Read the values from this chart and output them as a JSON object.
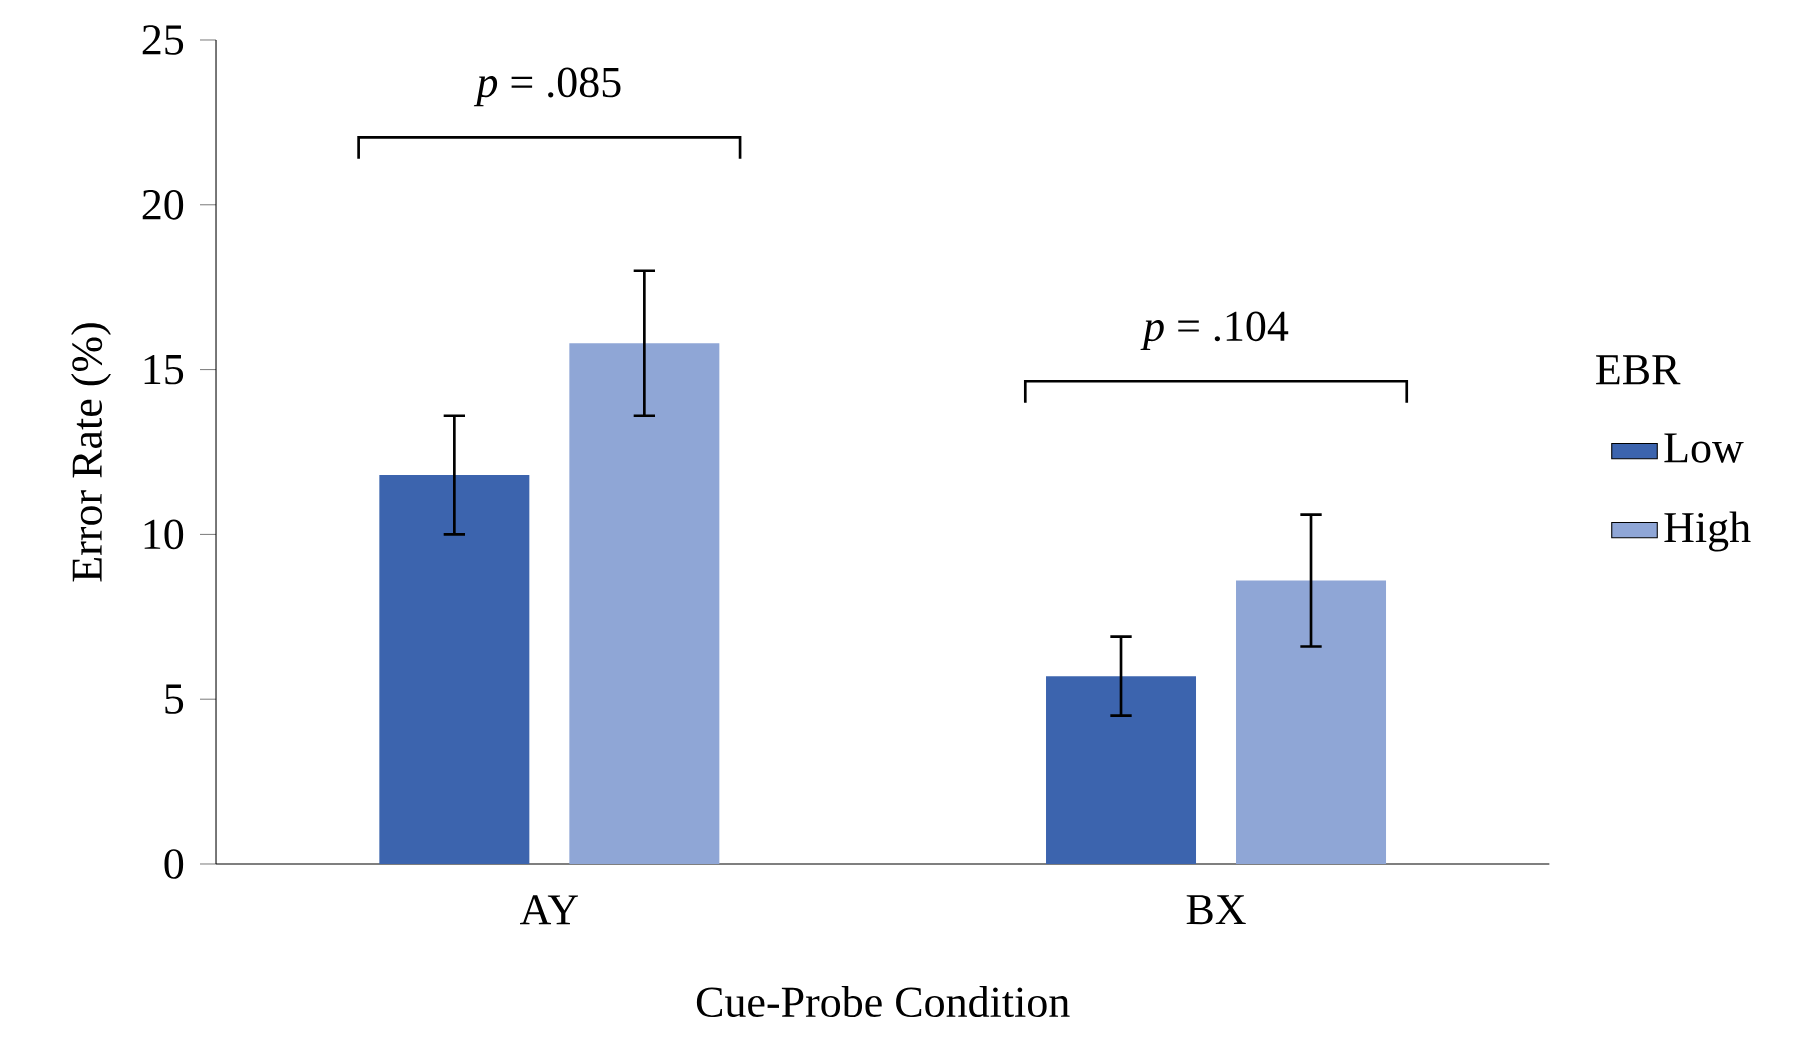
{
  "chart_data": {
    "type": "bar",
    "xlabel": "Cue-Probe Condition",
    "ylabel": "Error Rate (%)",
    "legend_title": "EBR",
    "categories": [
      "AY",
      "BX"
    ],
    "series": [
      {
        "name": "Low",
        "color": "#3c64ae",
        "values": [
          11.8,
          5.7
        ],
        "errors": [
          1.8,
          1.2
        ]
      },
      {
        "name": "High",
        "color": "#8fa6d6",
        "values": [
          15.8,
          8.6
        ],
        "errors": [
          2.2,
          2.0
        ]
      }
    ],
    "ylim": [
      0,
      25
    ],
    "yticks": [
      0,
      5,
      10,
      15,
      20,
      25
    ],
    "grid": false,
    "legend": "right",
    "annotations": [
      "*p* = .085",
      "*p* = .104"
    ]
  }
}
